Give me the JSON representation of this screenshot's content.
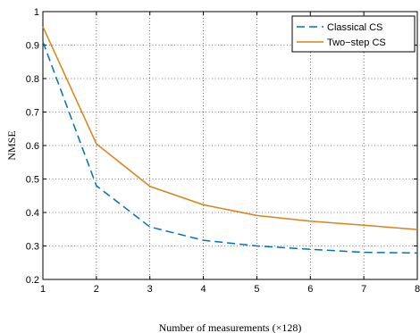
{
  "chart_data": {
    "type": "line",
    "xlabel": "Number of measurements (×128)",
    "ylabel": "NMSE",
    "x": [
      1,
      2,
      3,
      4,
      5,
      6,
      7,
      8
    ],
    "xlim": [
      1,
      8
    ],
    "ylim": [
      0.2,
      1
    ],
    "xticks": [
      "1",
      "2",
      "3",
      "4",
      "5",
      "6",
      "7",
      "8"
    ],
    "yticks": [
      "0.2",
      "0.3",
      "0.4",
      "0.5",
      "0.6",
      "0.7",
      "0.8",
      "0.9",
      "1"
    ],
    "grid": true,
    "legend_position": "top-right",
    "series": [
      {
        "name": "Classical CS",
        "color": "#0072bd",
        "style": "dashed",
        "values": [
          0.91,
          0.48,
          0.357,
          0.317,
          0.3,
          0.29,
          0.281,
          0.279
        ]
      },
      {
        "name": "Two−step CS",
        "color": "#d98319",
        "style": "solid",
        "values": [
          0.955,
          0.605,
          0.478,
          0.423,
          0.391,
          0.374,
          0.362,
          0.349
        ]
      }
    ]
  }
}
